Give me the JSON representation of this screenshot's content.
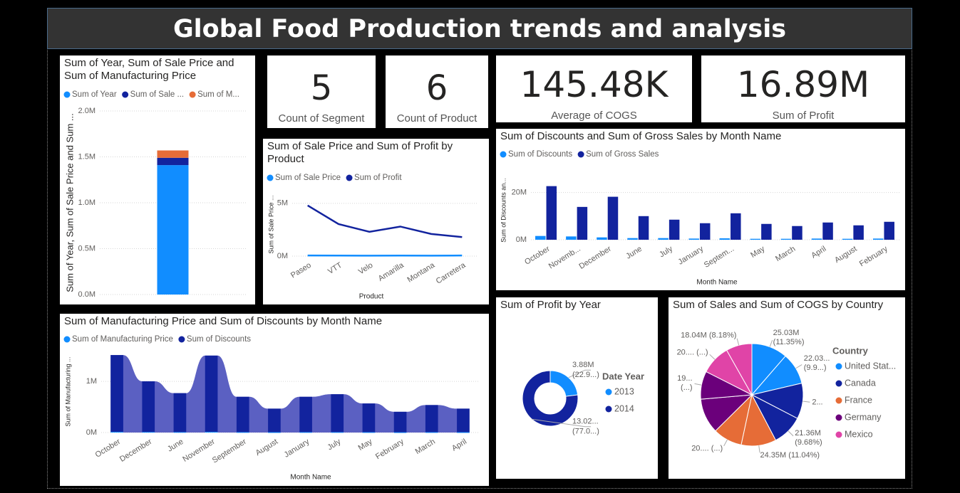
{
  "title": "Global Food Production trends and analysis",
  "cards": [
    {
      "value": 5,
      "label": "Count of Segment"
    },
    {
      "value": 6,
      "label": "Count of Product"
    },
    {
      "value": 145480,
      "value_label": "145.48K",
      "label": "Average of COGS"
    },
    {
      "value": 16890000,
      "value_label": "16.89M",
      "label": "Sum of Profit"
    }
  ],
  "chart_data": [
    {
      "type": "stacked_bar",
      "title": "Sum of Year, Sum of Sale Price and Sum of Manufacturing Price",
      "ylabel": "Sum of Year, Sum of Sale Price and Sum ...",
      "categories": [
        null
      ],
      "series": [
        {
          "name": "Sum of Year",
          "color": "#118dff",
          "values": [
            1410000
          ]
        },
        {
          "name": "Sum of Sale ...",
          "color": "#12239e",
          "values": [
            80000
          ]
        },
        {
          "name": "Sum of M...",
          "color": "#e66c37",
          "values": [
            80000
          ]
        }
      ],
      "ylim": [
        0,
        2000000
      ],
      "yticks": [
        {
          "value": 0,
          "label": "0.0M"
        },
        {
          "value": 500000,
          "label": "0.5M"
        },
        {
          "value": 1000000,
          "label": "1.0M"
        },
        {
          "value": 1500000,
          "label": "1.5M"
        },
        {
          "value": 2000000,
          "label": "2.0M"
        }
      ],
      "grid": true
    },
    {
      "type": "line",
      "title": "Sum of Sale Price and Sum of Profit by Product",
      "ylabel": "Sum of Sale Price ...",
      "xlabel": "Product",
      "categories": [
        "Paseo",
        "VTT",
        "Velo",
        "Amarilla",
        "Montana",
        "Carretera"
      ],
      "series": [
        {
          "name": "Sum of Sale Price",
          "color": "#118dff",
          "values": [
            60000,
            50000,
            45000,
            48000,
            42000,
            55000
          ]
        },
        {
          "name": "Sum of Profit",
          "color": "#12239e",
          "values": [
            4800000,
            3040000,
            2300000,
            2800000,
            2100000,
            1800000
          ]
        }
      ],
      "ylim": [
        0,
        6000000
      ],
      "yticks": [
        {
          "value": 0,
          "label": "0M"
        },
        {
          "value": 5000000,
          "label": "5M"
        }
      ],
      "grid": true
    },
    {
      "type": "clustered_bar",
      "title": "Sum of Discounts and Sum of Gross Sales by Month Name",
      "ylabel": "Sum of Discounts an...",
      "xlabel": "Month Name",
      "categories": [
        "October",
        "Novemb...",
        "December",
        "June",
        "July",
        "January",
        "Septem...",
        "May",
        "March",
        "April",
        "August",
        "February"
      ],
      "series": [
        {
          "name": "Sum of Discounts",
          "color": "#118dff",
          "values": [
            1600000,
            1400000,
            1000000,
            700000,
            700000,
            500000,
            600000,
            400000,
            400000,
            500000,
            400000,
            500000
          ]
        },
        {
          "name": "Sum of Gross Sales",
          "color": "#12239e",
          "values": [
            22700000,
            13900000,
            18200000,
            10000000,
            8500000,
            7000000,
            11200000,
            6700000,
            5800000,
            7300000,
            6100000,
            7600000
          ]
        }
      ],
      "ylim": [
        0,
        25000000
      ],
      "yticks": [
        {
          "value": 0,
          "label": "0M"
        },
        {
          "value": 20000000,
          "label": "20M"
        }
      ],
      "grid": true
    },
    {
      "type": "ribbon",
      "title": "Sum of Manufacturing Price and Sum of Discounts by Month Name",
      "ylabel": "Sum of Manufacturing ...",
      "xlabel": "Month Name",
      "categories": [
        "October",
        "December",
        "June",
        "November",
        "September",
        "August",
        "January",
        "July",
        "May",
        "February",
        "March",
        "April"
      ],
      "series": [
        {
          "name": "Sum of Manufacturing Price",
          "color": "#118dff",
          "values": [
            15000,
            12000,
            10000,
            15000,
            9000,
            7000,
            9000,
            9000,
            8000,
            6000,
            8000,
            7000
          ]
        },
        {
          "name": "Sum of Discounts",
          "color": "#12239e",
          "values": [
            1500000,
            990000,
            760000,
            1490000,
            690000,
            460000,
            690000,
            740000,
            560000,
            400000,
            530000,
            460000
          ]
        }
      ],
      "ribbon_color": "#5b60c2",
      "ylim": [
        0,
        1600000
      ],
      "yticks": [
        {
          "value": 0,
          "label": "0M"
        },
        {
          "value": 1000000,
          "label": "1M"
        }
      ],
      "grid": true
    },
    {
      "type": "donut",
      "title": "Sum of Profit by Year",
      "legend_title": "Date Year",
      "categories": [
        "2013",
        "2014"
      ],
      "colors": [
        "#118dff",
        "#12239e"
      ],
      "values": [
        3880000,
        13020000
      ],
      "value_labels": [
        [
          "3.88M",
          "(22.9...)"
        ],
        [
          "13.02...",
          "(77.0...)"
        ]
      ]
    },
    {
      "type": "pie",
      "title": "Sum of Sales and Sum of COGS by Country",
      "legend_title": "Country",
      "categories": [
        "United Stat...",
        "Canada",
        "France",
        "Germany",
        "Mexico"
      ],
      "colors": [
        "#118dff",
        "#12239e",
        "#e66c37",
        "#6b007b",
        "#e044a7"
      ],
      "values": [
        [
          25030000,
          22030000
        ],
        [
          24900000,
          21360000
        ],
        [
          24350000,
          20300000
        ],
        [
          24400000,
          19500000
        ],
        [
          20600000,
          18040000
        ]
      ],
      "value_labels": [
        [
          [
            "25.03M",
            "(11.35%)"
          ],
          [
            "22.03...",
            "(9.9...)"
          ]
        ],
        [
          [
            "2..."
          ],
          [
            "21.36M",
            "(9.68%)"
          ]
        ],
        [
          [
            "24.35M (11.04%)"
          ],
          [
            "20.... (...)"
          ]
        ],
        [
          null,
          [
            "19...",
            "(...)"
          ]
        ],
        [
          [
            "20.... (...)"
          ],
          [
            "18.04M (8.18%)"
          ]
        ]
      ]
    }
  ]
}
